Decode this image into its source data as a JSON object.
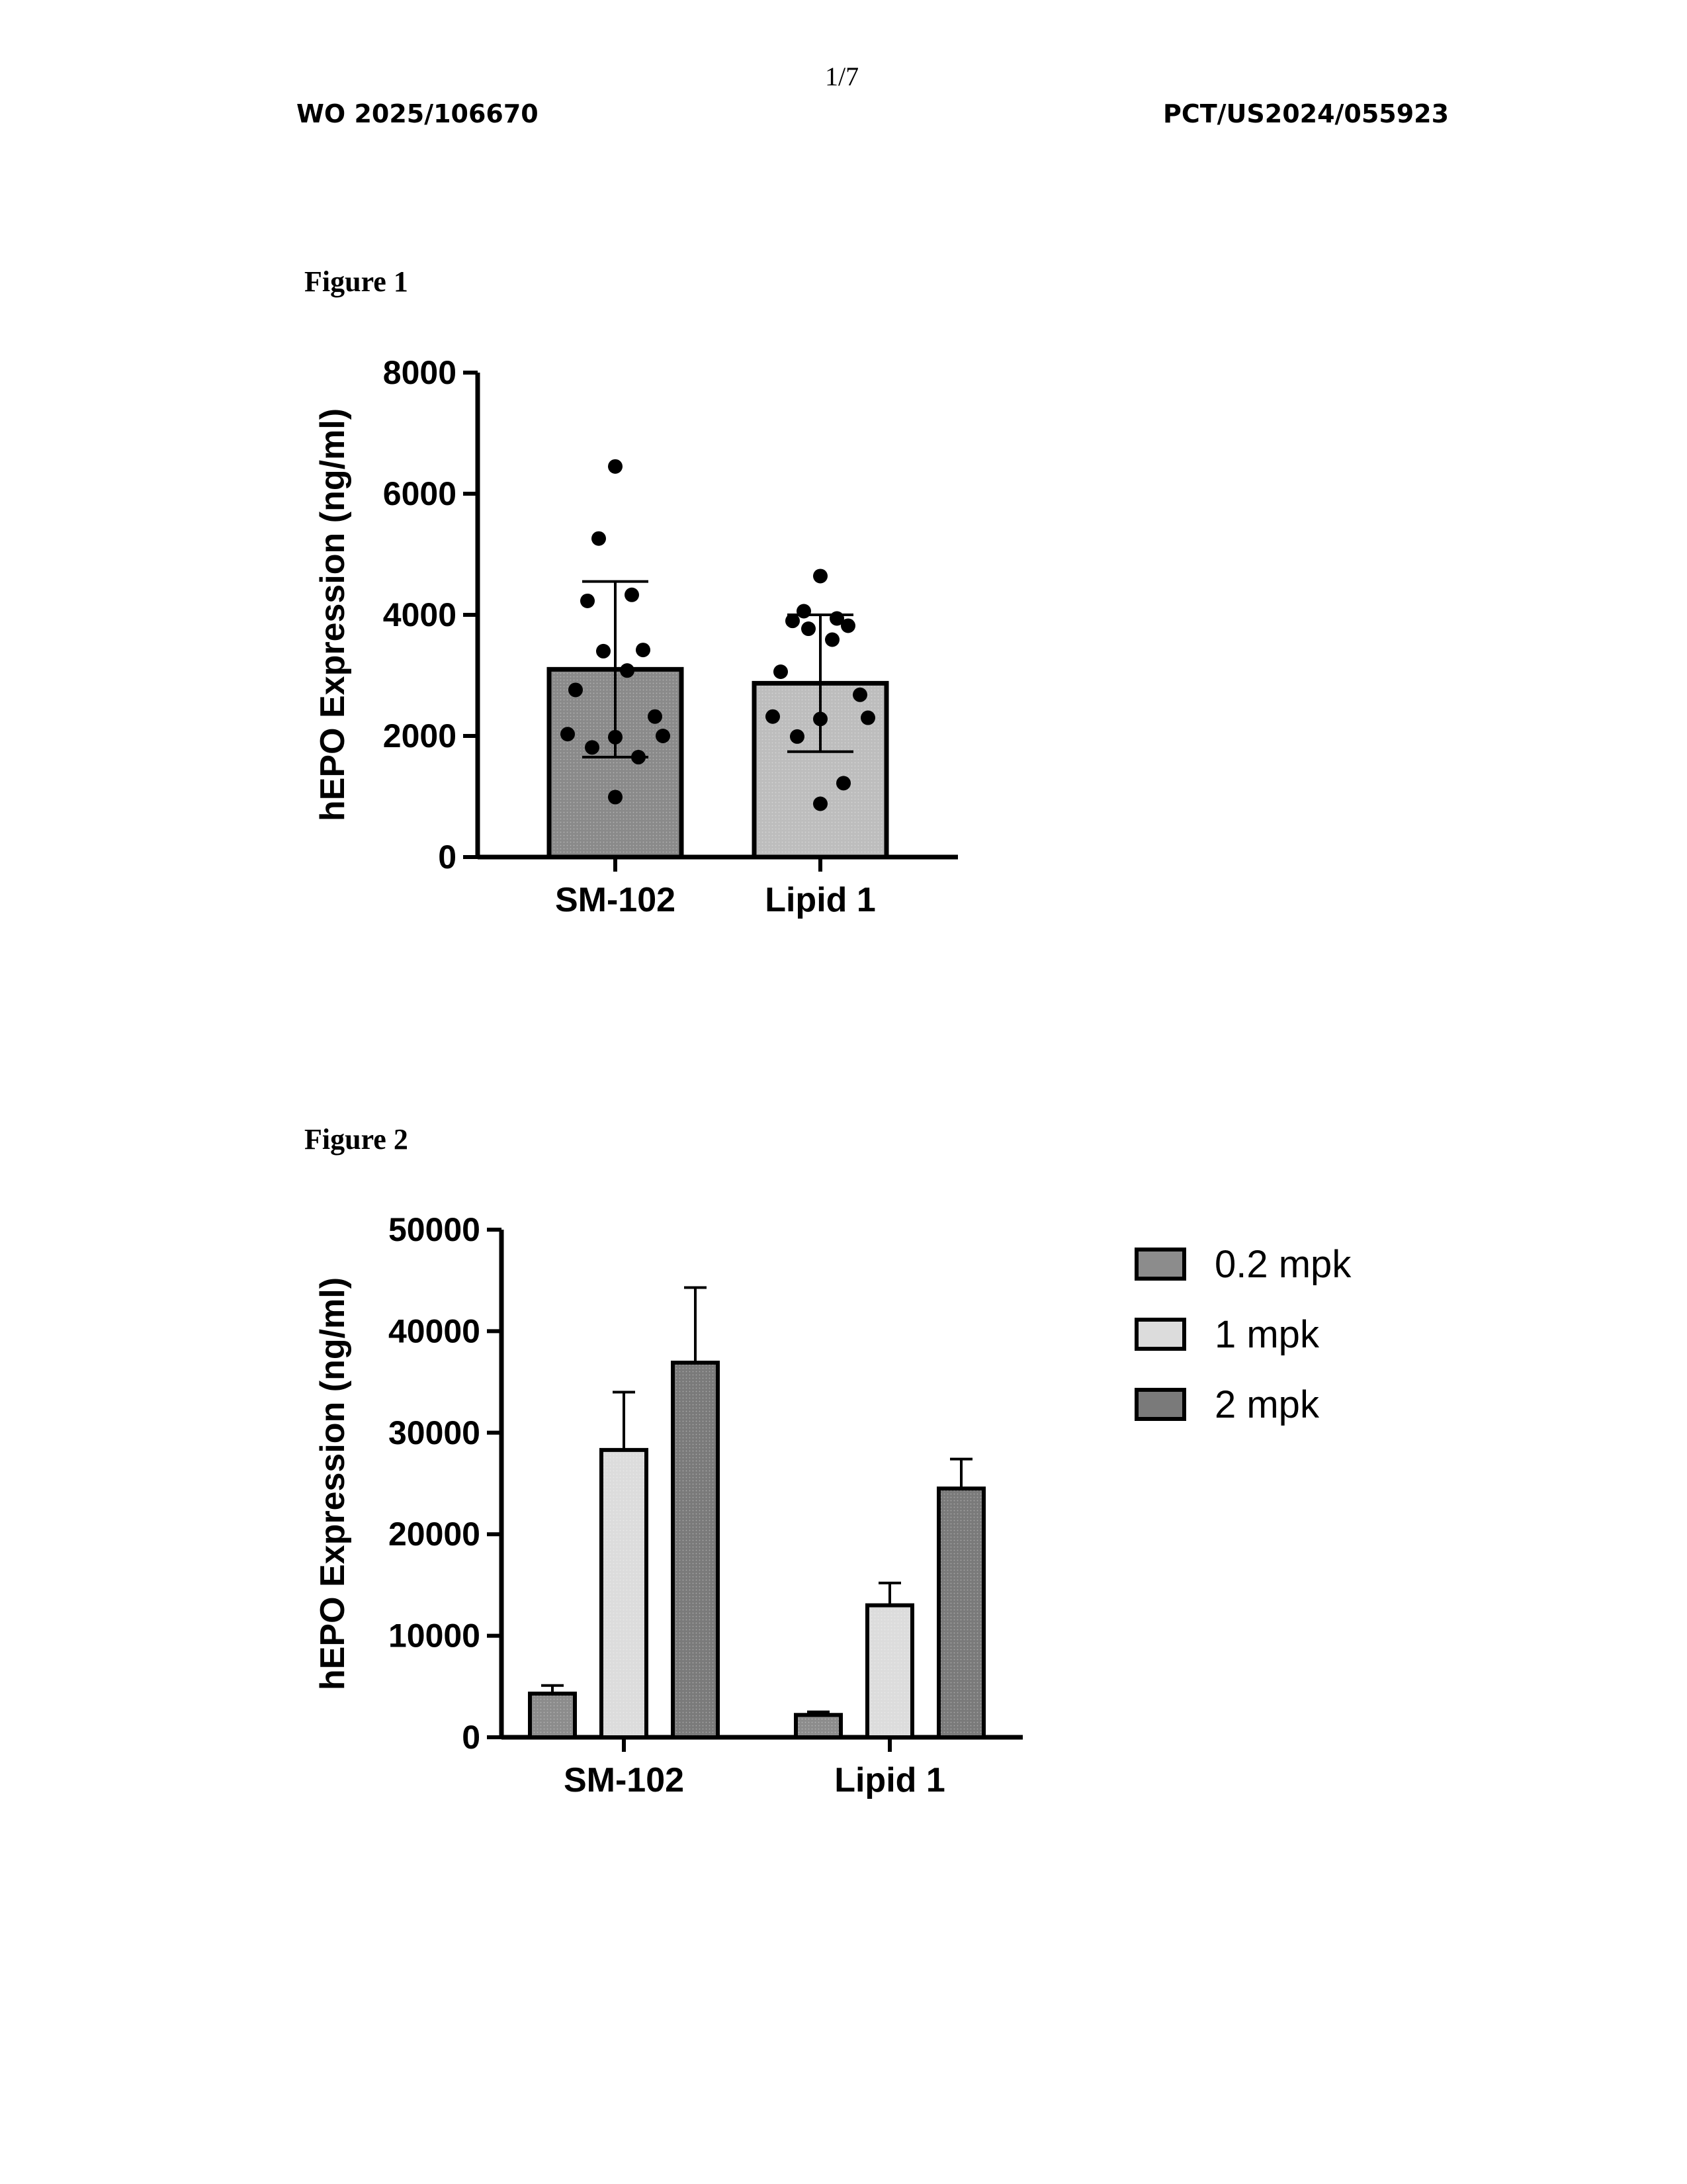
{
  "header": {
    "page_number": "1/7",
    "publication_number": "WO 2025/106670",
    "application_number": "PCT/US2024/055923"
  },
  "figures": {
    "fig1_label": "Figure 1",
    "fig2_label": "Figure 2"
  },
  "chart_data": [
    {
      "type": "bar",
      "categories": [
        "SM-102",
        "Lipid 1"
      ],
      "values": [
        3100,
        2870
      ],
      "error": [
        1450,
        1130
      ],
      "points": [
        [
          6450,
          5260,
          4330,
          4230,
          3420,
          3400,
          3080,
          2760,
          2320,
          2030,
          2000,
          1980,
          1810,
          1650,
          990
        ],
        [
          4640,
          4060,
          3940,
          3900,
          3820,
          3770,
          3590,
          3060,
          2680,
          2320,
          2300,
          2280,
          1990,
          1220,
          880
        ]
      ],
      "ylabel": "hEPO Expression (ng/ml)",
      "ylim": [
        0,
        8000
      ],
      "yticks": [
        "0",
        "2000",
        "4000",
        "6000",
        "8000"
      ]
    },
    {
      "type": "bar",
      "categories": [
        "SM-102",
        "Lipid 1"
      ],
      "series": [
        {
          "name": "0.2 mpk",
          "values": [
            4300,
            2200
          ],
          "error": [
            800,
            300
          ]
        },
        {
          "name": "1 mpk",
          "values": [
            28300,
            13000
          ],
          "error": [
            5700,
            2200
          ]
        },
        {
          "name": "2 mpk",
          "values": [
            36900,
            24500
          ],
          "error": [
            7400,
            2900
          ]
        }
      ],
      "ylabel": "hEPO Expression (ng/ml)",
      "ylim": [
        0,
        50000
      ],
      "yticks": [
        "0",
        "10000",
        "20000",
        "30000",
        "40000",
        "50000"
      ],
      "legend_position": "top-right"
    }
  ],
  "colors": {
    "series_0.2mpk": "#8c8c8c",
    "series_1mpk": "#dcdcdc",
    "series_2mpk": "#7a7a7a",
    "fig1_SM-102": "#8a8a8a",
    "fig1_Lipid1": "#bdbdbd"
  }
}
